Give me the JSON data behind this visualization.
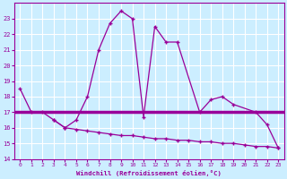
{
  "xlabel": "Windchill (Refroidissement éolien,°C)",
  "x_main": [
    0,
    1,
    2,
    3,
    4,
    5,
    6,
    7,
    8,
    9,
    10,
    11,
    12,
    13,
    14,
    16,
    17,
    18,
    19,
    21,
    22,
    23
  ],
  "y_main": [
    18.5,
    17.0,
    17.0,
    16.5,
    16.0,
    16.5,
    18.0,
    21.0,
    22.7,
    23.5,
    23.0,
    16.7,
    22.5,
    21.5,
    21.5,
    17.0,
    17.8,
    18.0,
    17.5,
    17.0,
    16.2,
    14.7
  ],
  "x_desc": [
    3,
    4,
    5,
    6,
    7,
    8,
    9,
    10,
    11,
    12,
    13,
    14,
    15,
    16,
    17,
    18,
    19,
    20,
    21,
    22,
    23
  ],
  "y_desc": [
    16.5,
    16.0,
    15.9,
    15.8,
    15.7,
    15.6,
    15.5,
    15.5,
    15.4,
    15.3,
    15.3,
    15.2,
    15.2,
    15.1,
    15.1,
    15.0,
    15.0,
    14.9,
    14.8,
    14.8,
    14.7
  ],
  "y_hline": 17.0,
  "ylim": [
    14,
    24
  ],
  "xlim": [
    -0.5,
    23.5
  ],
  "yticks": [
    14,
    15,
    16,
    17,
    18,
    19,
    20,
    21,
    22,
    23
  ],
  "xticks": [
    0,
    1,
    2,
    3,
    4,
    5,
    6,
    7,
    8,
    9,
    10,
    11,
    12,
    13,
    14,
    15,
    16,
    17,
    18,
    19,
    20,
    21,
    22,
    23
  ],
  "line_color": "#990099",
  "bg_color": "#cceeff",
  "grid_color": "#ffffff"
}
